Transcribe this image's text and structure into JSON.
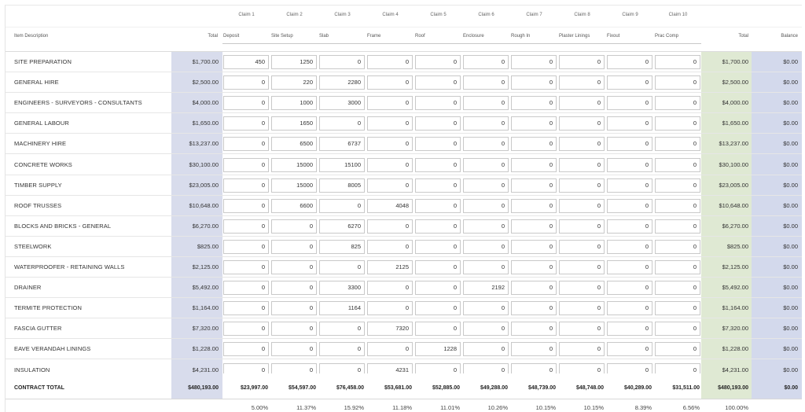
{
  "claims": [
    "Claim 1",
    "Claim 2",
    "Claim 3",
    "Claim 4",
    "Claim 5",
    "Claim 6",
    "Claim 7",
    "Claim 8",
    "Claim 9",
    "Claim 10"
  ],
  "headers": {
    "item": "Item Description",
    "total": "Total",
    "stages": [
      "Deposit",
      "Site Setup",
      "Slab",
      "Frame",
      "Roof",
      "Enclosure",
      "Rough In",
      "Plaster Linings",
      "Fixout",
      "Prac Comp"
    ],
    "grand_total": "Total",
    "balance": "Balance"
  },
  "rows": [
    {
      "desc": "SITE PREPARATION",
      "total": "$1,700.00",
      "claims": [
        "450",
        "1250",
        "0",
        "0",
        "0",
        "0",
        "0",
        "0",
        "0",
        "0"
      ],
      "grand_total": "$1,700.00",
      "balance": "$0.00"
    },
    {
      "desc": "GENERAL HIRE",
      "total": "$2,500.00",
      "claims": [
        "0",
        "220",
        "2280",
        "0",
        "0",
        "0",
        "0",
        "0",
        "0",
        "0"
      ],
      "grand_total": "$2,500.00",
      "balance": "$0.00"
    },
    {
      "desc": "ENGINEERS - SURVEYORS - CONSULTANTS",
      "total": "$4,000.00",
      "claims": [
        "0",
        "1000",
        "3000",
        "0",
        "0",
        "0",
        "0",
        "0",
        "0",
        "0"
      ],
      "grand_total": "$4,000.00",
      "balance": "$0.00"
    },
    {
      "desc": "GENERAL LABOUR",
      "total": "$1,650.00",
      "claims": [
        "0",
        "1650",
        "0",
        "0",
        "0",
        "0",
        "0",
        "0",
        "0",
        "0"
      ],
      "grand_total": "$1,650.00",
      "balance": "$0.00"
    },
    {
      "desc": "MACHINERY HIRE",
      "total": "$13,237.00",
      "claims": [
        "0",
        "6500",
        "6737",
        "0",
        "0",
        "0",
        "0",
        "0",
        "0",
        "0"
      ],
      "grand_total": "$13,237.00",
      "balance": "$0.00"
    },
    {
      "desc": "CONCRETE WORKS",
      "total": "$30,100.00",
      "claims": [
        "0",
        "15000",
        "15100",
        "0",
        "0",
        "0",
        "0",
        "0",
        "0",
        "0"
      ],
      "grand_total": "$30,100.00",
      "balance": "$0.00"
    },
    {
      "desc": "TIMBER SUPPLY",
      "total": "$23,005.00",
      "claims": [
        "0",
        "15000",
        "8005",
        "0",
        "0",
        "0",
        "0",
        "0",
        "0",
        "0"
      ],
      "grand_total": "$23,005.00",
      "balance": "$0.00"
    },
    {
      "desc": "ROOF TRUSSES",
      "total": "$10,648.00",
      "claims": [
        "0",
        "6600",
        "0",
        "4048",
        "0",
        "0",
        "0",
        "0",
        "0",
        "0"
      ],
      "grand_total": "$10,648.00",
      "balance": "$0.00"
    },
    {
      "desc": "BLOCKS AND BRICKS - GENERAL",
      "total": "$6,270.00",
      "claims": [
        "0",
        "0",
        "6270",
        "0",
        "0",
        "0",
        "0",
        "0",
        "0",
        "0"
      ],
      "grand_total": "$6,270.00",
      "balance": "$0.00"
    },
    {
      "desc": "STEELWORK",
      "total": "$825.00",
      "claims": [
        "0",
        "0",
        "825",
        "0",
        "0",
        "0",
        "0",
        "0",
        "0",
        "0"
      ],
      "grand_total": "$825.00",
      "balance": "$0.00"
    },
    {
      "desc": "WATERPROOFER - RETAINING WALLS",
      "total": "$2,125.00",
      "claims": [
        "0",
        "0",
        "0",
        "2125",
        "0",
        "0",
        "0",
        "0",
        "0",
        "0"
      ],
      "grand_total": "$2,125.00",
      "balance": "$0.00"
    },
    {
      "desc": "DRAINER",
      "total": "$5,492.00",
      "claims": [
        "0",
        "0",
        "3300",
        "0",
        "0",
        "2192",
        "0",
        "0",
        "0",
        "0"
      ],
      "grand_total": "$5,492.00",
      "balance": "$0.00"
    },
    {
      "desc": "TERMITE PROTECTION",
      "total": "$1,164.00",
      "claims": [
        "0",
        "0",
        "1164",
        "0",
        "0",
        "0",
        "0",
        "0",
        "0",
        "0"
      ],
      "grand_total": "$1,164.00",
      "balance": "$0.00"
    },
    {
      "desc": "FASCIA GUTTER",
      "total": "$7,320.00",
      "claims": [
        "0",
        "0",
        "0",
        "7320",
        "0",
        "0",
        "0",
        "0",
        "0",
        "0"
      ],
      "grand_total": "$7,320.00",
      "balance": "$0.00"
    },
    {
      "desc": "EAVE VERANDAH LININGS",
      "total": "$1,228.00",
      "claims": [
        "0",
        "0",
        "0",
        "0",
        "1228",
        "0",
        "0",
        "0",
        "0",
        "0"
      ],
      "grand_total": "$1,228.00",
      "balance": "$0.00"
    },
    {
      "desc": "INSULATION",
      "total": "$4,231.00",
      "claims": [
        "0",
        "0",
        "0",
        "4231",
        "0",
        "0",
        "0",
        "0",
        "0",
        "0"
      ],
      "grand_total": "$4,231.00",
      "balance": "$0.00"
    }
  ],
  "contract_total": {
    "label": "CONTRACT TOTAL",
    "total": "$480,193.00",
    "claims": [
      "$23,997.00",
      "$54,597.00",
      "$76,458.00",
      "$53,681.00",
      "$52,885.00",
      "$49,288.00",
      "$48,739.00",
      "$48,748.00",
      "$40,289.00",
      "$31,511.00"
    ],
    "grand_total": "$480,193.00",
    "balance": "$0.00"
  },
  "percentages": {
    "claims": [
      "5.00%",
      "11.37%",
      "15.92%",
      "11.18%",
      "11.01%",
      "10.26%",
      "10.15%",
      "10.15%",
      "8.39%",
      "6.56%"
    ],
    "grand_total": "100.00%"
  }
}
